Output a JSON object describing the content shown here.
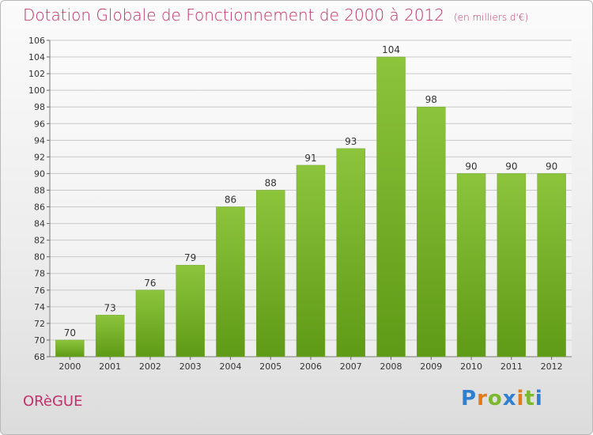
{
  "title": "Dotation Globale de Fonctionnement de 2000 à 2012",
  "subtitle": "(en milliers d'€)",
  "commune": "ORèGUE",
  "logo": {
    "letters": [
      "P",
      "r",
      "o",
      "x",
      "i",
      "t",
      "i"
    ],
    "colors": [
      "#2f7fd0",
      "#e07a1a",
      "#7cb82f",
      "#2f7fd0",
      "#e07a1a",
      "#7cb82f",
      "#2f7fd0"
    ]
  },
  "colors": {
    "bar": "#8cc43c",
    "bar_dark": "#5f9a16",
    "title": "#c0306a"
  },
  "chart_data": {
    "type": "bar",
    "categories": [
      "2000",
      "2001",
      "2002",
      "2003",
      "2004",
      "2005",
      "2006",
      "2007",
      "2008",
      "2009",
      "2010",
      "2011",
      "2012"
    ],
    "values": [
      70,
      73,
      76,
      79,
      86,
      88,
      91,
      93,
      104,
      98,
      90,
      90,
      90
    ],
    "ylim": [
      68,
      106
    ],
    "yticks": [
      68,
      70,
      72,
      74,
      76,
      78,
      80,
      82,
      84,
      86,
      88,
      90,
      92,
      94,
      96,
      98,
      100,
      102,
      104,
      106
    ],
    "grid": true,
    "data_labels": true
  }
}
